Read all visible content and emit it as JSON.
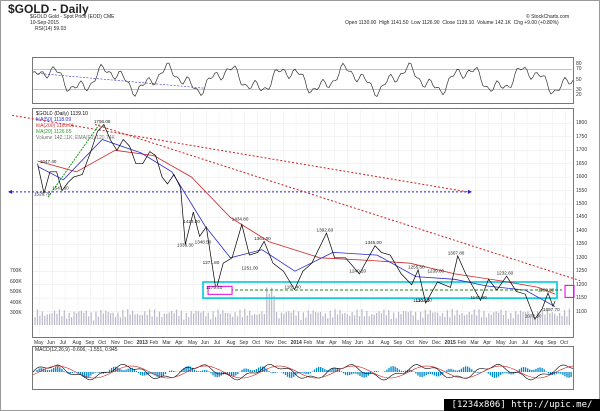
{
  "chart_data": {
    "type": "line",
    "title": "$GOLD - Daily",
    "symbol_line": "$GOLD Gold - Spot Price (EOD) CME",
    "date": "10-Sep-2015",
    "ohlc": {
      "open": "Open 1130.00",
      "high": "High 1141.50",
      "low": "Low 1126.90",
      "close": "Close 1139.10",
      "volume": "Volume 142.1K",
      "chg": "Chg +9.00 (+0.80%)"
    },
    "attribution": "© StockCharts.com",
    "rsi_label": "RSI(14) 59.03",
    "rsi_ticks": [
      "80",
      "70",
      "50",
      "30",
      "20"
    ],
    "legend": [
      {
        "text": "$GOLD (Daily) 1139.10",
        "color": "#000000"
      },
      {
        "text": "MA(50) 1118.09",
        "color": "#2b2bcc"
      },
      {
        "text": "MA(200) 1163.06",
        "color": "#cc2b2b"
      },
      {
        "text": "MA(20) 1126.65",
        "color": "#2b9a2b"
      },
      {
        "text": "Volume 142.11K, EMA(60) 129.74K",
        "color": "#666666"
      }
    ],
    "price_ticks": [
      "1800",
      "1750",
      "1700",
      "1650",
      "1600",
      "1550",
      "1500",
      "1450",
      "1400",
      "1350",
      "1300",
      "1250",
      "1200",
      "1150",
      "1100"
    ],
    "volume_ticks": [
      "700K",
      "600K",
      "500K",
      "400K",
      "300K"
    ],
    "x_labels": [
      "May",
      "Jun",
      "Jul",
      "Aug",
      "Sep",
      "Oct",
      "Nov",
      "Dec",
      "2013",
      "Feb",
      "Mar",
      "Apr",
      "May",
      "Jun",
      "Jul",
      "Aug",
      "Sep",
      "Oct",
      "Nov",
      "Dec",
      "2014",
      "Feb",
      "Mar",
      "Apr",
      "May",
      "Jun",
      "Jul",
      "Aug",
      "Sep",
      "Oct",
      "Nov",
      "Dec",
      "2015",
      "Feb",
      "Mar",
      "Apr",
      "May",
      "Jun",
      "Jul",
      "Aug",
      "Sep",
      "Oct"
    ],
    "macd_label": "MACD(12,26,9) -0.606, -1.551, 0.945",
    "ylim": [
      1050,
      1820
    ],
    "price_path": [
      [
        "2012-05-01",
        1650
      ],
      [
        "2012-05-16",
        1540
      ],
      [
        "2012-05-30",
        1620
      ],
      [
        "2012-06-15",
        1620
      ],
      [
        "2012-06-28",
        1550
      ],
      [
        "2012-07-12",
        1580
      ],
      [
        "2012-07-25",
        1600
      ],
      [
        "2012-08-15",
        1610
      ],
      [
        "2012-09-05",
        1700
      ],
      [
        "2012-09-20",
        1770
      ],
      [
        "2012-10-05",
        1796
      ],
      [
        "2012-10-20",
        1740
      ],
      [
        "2012-11-05",
        1700
      ],
      [
        "2012-11-20",
        1740
      ],
      [
        "2012-12-05",
        1715
      ],
      [
        "2012-12-20",
        1650
      ],
      [
        "2013-01-05",
        1650
      ],
      [
        "2013-01-22",
        1695
      ],
      [
        "2013-02-05",
        1680
      ],
      [
        "2013-02-20",
        1600
      ],
      [
        "2013-03-05",
        1575
      ],
      [
        "2013-03-20",
        1610
      ],
      [
        "2013-04-05",
        1560
      ],
      [
        "2013-04-16",
        1350
      ],
      [
        "2013-05-05",
        1470
      ],
      [
        "2013-05-20",
        1380
      ],
      [
        "2013-06-05",
        1415
      ],
      [
        "2013-06-28",
        1180
      ],
      [
        "2013-07-15",
        1280
      ],
      [
        "2013-08-05",
        1300
      ],
      [
        "2013-08-28",
        1424
      ],
      [
        "2013-09-15",
        1310
      ],
      [
        "2013-10-05",
        1320
      ],
      [
        "2013-10-20",
        1361
      ],
      [
        "2013-11-10",
        1280
      ],
      [
        "2013-12-05",
        1250
      ],
      [
        "2013-12-31",
        1182
      ],
      [
        "2014-01-20",
        1250
      ],
      [
        "2014-02-10",
        1280
      ],
      [
        "2014-03-17",
        1392
      ],
      [
        "2014-04-05",
        1300
      ],
      [
        "2014-05-01",
        1300
      ],
      [
        "2014-06-03",
        1240
      ],
      [
        "2014-07-10",
        1345
      ],
      [
        "2014-07-25",
        1320
      ],
      [
        "2014-08-15",
        1310
      ],
      [
        "2014-09-10",
        1240
      ],
      [
        "2014-10-05",
        1200
      ],
      [
        "2014-10-20",
        1255
      ],
      [
        "2014-11-07",
        1132
      ],
      [
        "2014-12-05",
        1210
      ],
      [
        "2015-01-05",
        1190
      ],
      [
        "2015-01-22",
        1307
      ],
      [
        "2015-02-10",
        1240
      ],
      [
        "2015-03-17",
        1142
      ],
      [
        "2015-04-05",
        1220
      ],
      [
        "2015-04-25",
        1180
      ],
      [
        "2015-05-18",
        1232
      ],
      [
        "2015-06-10",
        1175
      ],
      [
        "2015-07-01",
        1165
      ],
      [
        "2015-07-24",
        1072
      ],
      [
        "2015-08-10",
        1110
      ],
      [
        "2015-08-24",
        1169
      ],
      [
        "2015-09-05",
        1120
      ],
      [
        "2015-09-10",
        1139
      ]
    ],
    "annotations": [
      {
        "text": "1796.08",
        "x": "2012-10-05",
        "y": 1796
      },
      {
        "text": "1547.60",
        "x": "2012-06-28",
        "y": 1548
      },
      {
        "text": "1526.70",
        "x": "2012-05-16",
        "y": 1527
      },
      {
        "text": "1647.40",
        "x": "2012-05-30",
        "y": 1647
      },
      {
        "text": "1423.30",
        "x": "2013-05-05",
        "y": 1423
      },
      {
        "text": "1336.30",
        "x": "2013-04-20",
        "y": 1336
      },
      {
        "text": "1348.50",
        "x": "2013-06-01",
        "y": 1348
      },
      {
        "text": "1271.80",
        "x": "2013-06-20",
        "y": 1271
      },
      {
        "text": "1434.80",
        "x": "2013-08-28",
        "y": 1434
      },
      {
        "text": "1361.00",
        "x": "2013-10-20",
        "y": 1361
      },
      {
        "text": "1251.00",
        "x": "2013-09-20",
        "y": 1251
      },
      {
        "text": "1179.40",
        "x": "2013-06-28",
        "y": 1179
      },
      {
        "text": "1181.40",
        "x": "2013-12-31",
        "y": 1181
      },
      {
        "text": "1392.60",
        "x": "2014-03-17",
        "y": 1392
      },
      {
        "text": "1240.20",
        "x": "2014-06-03",
        "y": 1240
      },
      {
        "text": "1345.00",
        "x": "2014-07-10",
        "y": 1345
      },
      {
        "text": "1255.60",
        "x": "2014-10-20",
        "y": 1255
      },
      {
        "text": "1239.00",
        "x": "2014-12-05",
        "y": 1239
      },
      {
        "text": "1307.80",
        "x": "2015-01-22",
        "y": 1307
      },
      {
        "text": "1132.30",
        "x": "2014-11-07",
        "y": 1132
      },
      {
        "text": "1141.60",
        "x": "2015-03-17",
        "y": 1141
      },
      {
        "text": "1232.60",
        "x": "2015-05-18",
        "y": 1232
      },
      {
        "text": "1169.80",
        "x": "2015-08-24",
        "y": 1169
      },
      {
        "text": "1072.30",
        "x": "2015-07-24",
        "y": 1072
      },
      {
        "text": "1130.40",
        "x": "2014-11-01",
        "y": 1130
      },
      {
        "text": "1097.70",
        "x": "2015-09-05",
        "y": 1097
      }
    ],
    "support_level": 1180,
    "grid": true,
    "colors": {
      "price": "#000000",
      "ma50": "#2b2bcc",
      "ma200": "#cc2b2b",
      "ma20": "#2b9a2b",
      "resistance": "#d42020",
      "blue_dotted": "#2020d4",
      "green_dotted": "#1a8a1a",
      "highlight_box": "#00c8e0",
      "magenta_box": "#e000e0",
      "macd_hist": "#0088cc"
    }
  },
  "watermark": "[1234x806]  http://upic.me/"
}
